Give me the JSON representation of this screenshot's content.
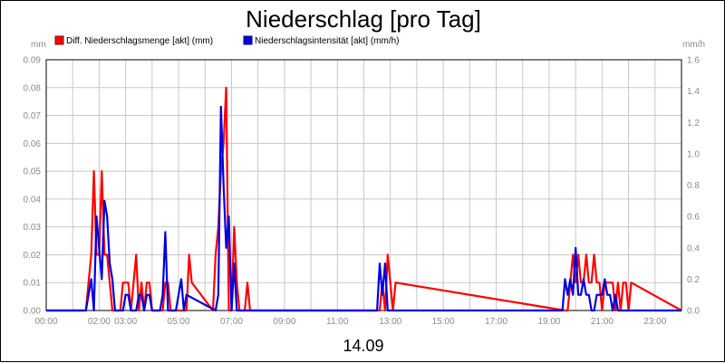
{
  "chart_data": {
    "type": "line",
    "title": "Niederschlag [pro Tag]",
    "date_label": "14.09",
    "y_left_unit": "mm",
    "y_right_unit": "mm/h",
    "y_left_range": [
      0,
      0.09
    ],
    "y_right_range": [
      0,
      1.6
    ],
    "y_left_ticks": [
      "0.00",
      "0.01",
      "0.02",
      "0.03",
      "0.04",
      "0.05",
      "0.06",
      "0.07",
      "0.08",
      "0.09"
    ],
    "y_right_ticks": [
      "0.0",
      "0.2",
      "0.4",
      "0.6",
      "0.8",
      "1.0",
      "1.2",
      "1.4",
      "1.6"
    ],
    "x_range_hours": [
      0,
      24
    ],
    "x_ticks": [
      {
        "hour": 0,
        "label": "00:00"
      },
      {
        "hour": 2,
        "label": "02:00"
      },
      {
        "hour": 3,
        "label": "03:00"
      },
      {
        "hour": 5,
        "label": "05:00"
      },
      {
        "hour": 7,
        "label": "07:00"
      },
      {
        "hour": 9,
        "label": "09:00"
      },
      {
        "hour": 11,
        "label": "11:00"
      },
      {
        "hour": 13,
        "label": "13:00"
      },
      {
        "hour": 15,
        "label": "15:00"
      },
      {
        "hour": 17,
        "label": "17:00"
      },
      {
        "hour": 19,
        "label": "19:00"
      },
      {
        "hour": 21,
        "label": "21:00"
      },
      {
        "hour": 23,
        "label": "23:00"
      }
    ],
    "grid": true,
    "legend_position": "top-left",
    "series": [
      {
        "name": "Diff. Niederschlagsmenge [akt] (mm)",
        "color": "#ff0000",
        "axis": "left",
        "x": [
          0,
          1.4,
          1.5,
          1.6,
          1.7,
          1.8,
          1.9,
          2.0,
          2.1,
          2.2,
          2.3,
          2.4,
          2.5,
          2.6,
          2.7,
          2.8,
          2.9,
          3.0,
          3.1,
          3.2,
          3.3,
          3.4,
          3.5,
          3.6,
          3.7,
          3.8,
          3.9,
          4.0,
          4.1,
          4.2,
          4.3,
          4.4,
          4.5,
          4.6,
          4.7,
          4.8,
          4.9,
          5.0,
          5.1,
          5.2,
          5.3,
          5.4,
          5.5,
          6.3,
          6.4,
          6.5,
          6.6,
          6.7,
          6.8,
          6.9,
          7.0,
          7.1,
          7.2,
          7.3,
          7.4,
          7.5,
          7.6,
          7.7,
          7.8,
          7.9,
          12.5,
          12.6,
          12.7,
          12.8,
          12.9,
          13.0,
          13.1,
          13.2,
          19.6,
          19.7,
          19.8,
          19.9,
          20.0,
          20.1,
          20.2,
          20.3,
          20.4,
          20.5,
          20.6,
          20.7,
          20.8,
          20.9,
          21.0,
          21.1,
          21.2,
          21.3,
          21.4,
          21.5,
          21.6,
          21.7,
          21.8,
          21.9,
          22.0,
          22.1,
          24
        ],
        "values": [
          0,
          0,
          0,
          0.01,
          0.02,
          0.05,
          0.02,
          0.02,
          0.05,
          0.02,
          0.02,
          0.01,
          0,
          0,
          0,
          0,
          0.01,
          0.01,
          0.01,
          0,
          0.01,
          0.02,
          0,
          0.01,
          0,
          0.01,
          0.01,
          0,
          0,
          0,
          0,
          0,
          0.01,
          0.01,
          0,
          0,
          0,
          0,
          0,
          0,
          0,
          0.02,
          0.01,
          0,
          0.02,
          0.03,
          0.05,
          0.06,
          0.08,
          0,
          0,
          0.03,
          0.01,
          0,
          0,
          0,
          0.01,
          0,
          0,
          0,
          0,
          0,
          0.01,
          0,
          0.02,
          0.01,
          0,
          0.01,
          0,
          0,
          0.01,
          0.02,
          0.01,
          0.02,
          0.01,
          0.01,
          0.02,
          0.01,
          0.01,
          0.02,
          0.01,
          0.01,
          0,
          0.01,
          0.01,
          0.01,
          0.01,
          0,
          0.01,
          0,
          0.01,
          0.01,
          0,
          0.01,
          0
        ]
      },
      {
        "name": "Niederschlagsintensität [akt] (mm/h)",
        "color": "#0000dd",
        "axis": "right",
        "x": [
          0,
          1.5,
          1.6,
          1.7,
          1.8,
          1.9,
          2.0,
          2.1,
          2.2,
          2.3,
          2.4,
          2.5,
          2.6,
          2.7,
          2.8,
          2.9,
          3.0,
          3.1,
          3.2,
          3.3,
          3.4,
          3.5,
          3.6,
          3.7,
          3.8,
          3.9,
          4.0,
          4.1,
          4.2,
          4.3,
          4.4,
          4.5,
          4.6,
          4.7,
          4.8,
          4.9,
          5.0,
          5.1,
          5.2,
          5.3,
          6.4,
          6.5,
          6.6,
          6.7,
          6.8,
          6.9,
          7.0,
          7.1,
          7.2,
          7.3,
          7.4,
          7.5,
          7.6,
          7.7,
          12.5,
          12.6,
          12.7,
          12.8,
          12.9,
          13.0,
          19.5,
          19.6,
          19.7,
          19.8,
          19.9,
          20.0,
          20.1,
          20.2,
          20.3,
          20.4,
          20.5,
          20.6,
          20.7,
          20.8,
          20.9,
          21.0,
          21.1,
          21.2,
          21.3,
          21.4,
          21.5,
          21.6,
          21.7,
          21.8,
          21.9,
          22.0,
          24
        ],
        "values": [
          0,
          0,
          0.1,
          0.2,
          0,
          0.6,
          0.4,
          0.2,
          0.7,
          0.6,
          0.3,
          0.2,
          0,
          0,
          0,
          0,
          0.1,
          0.1,
          0,
          0,
          0,
          0.1,
          0.1,
          0,
          0.1,
          0.1,
          0,
          0,
          0,
          0,
          0.1,
          0.5,
          0,
          0,
          0,
          0,
          0.1,
          0.2,
          0,
          0.1,
          0,
          0.1,
          1.3,
          0.8,
          0.4,
          0.6,
          0,
          0.3,
          0,
          0,
          0,
          0,
          0,
          0,
          0,
          0.3,
          0.1,
          0.3,
          0,
          0,
          0,
          0.2,
          0.1,
          0.2,
          0.1,
          0.4,
          0.1,
          0.1,
          0.2,
          0.1,
          0.1,
          0,
          0,
          0.1,
          0.1,
          0.1,
          0.2,
          0.1,
          0.1,
          0,
          0.1,
          0,
          0,
          0,
          0,
          0,
          0
        ]
      }
    ]
  }
}
